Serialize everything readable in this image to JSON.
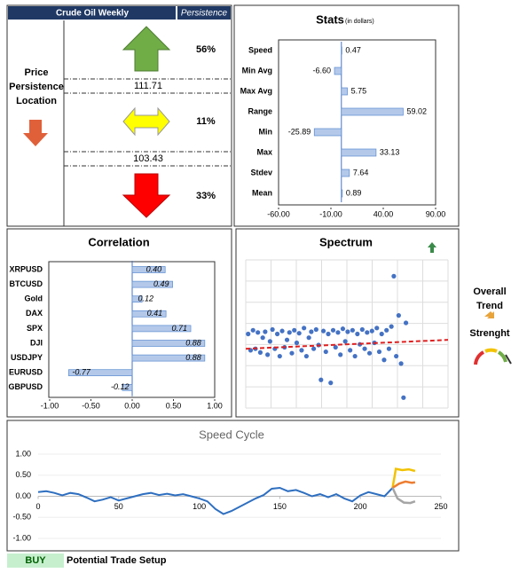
{
  "persistence": {
    "title": "Crude Oil Weekly",
    "tag": "Persistence",
    "label": "Price Persistence Location",
    "levels": [
      111.71,
      103.43
    ],
    "percents": [
      "56%",
      "11%",
      "33%"
    ]
  },
  "trend": {
    "title": "Overall Trend",
    "strength": "Strenght"
  },
  "footer": {
    "signal": "BUY",
    "label": "Potential Trade Setup"
  },
  "chart_data": [
    {
      "type": "bar",
      "orientation": "horizontal",
      "title": "Stats",
      "subtitle": "(in dollars)",
      "categories": [
        "Speed",
        "Min Avg",
        "Max Avg",
        "Range",
        "Min",
        "Max",
        "Stdev",
        "Mean"
      ],
      "values": [
        0.47,
        -6.6,
        5.75,
        59.02,
        -25.89,
        33.13,
        7.64,
        0.89
      ],
      "value_labels": [
        "0.47",
        "-6.60",
        "5.75",
        "59.02",
        "-25.89",
        "33.13",
        "7.64",
        "0.89"
      ],
      "color": "#b4c9ea",
      "xlim": [
        -60,
        90
      ],
      "xticks": [
        {
          "value": -60,
          "label": "-60.00"
        },
        {
          "value": -10,
          "label": "-10.00"
        },
        {
          "value": 40,
          "label": "40.00"
        },
        {
          "value": 90,
          "label": "90.00"
        }
      ]
    },
    {
      "type": "bar",
      "orientation": "horizontal",
      "title": "Correlation",
      "categories": [
        "XRPUSD",
        "BTCUSD",
        "Gold",
        "DAX",
        "SPX",
        "DJI",
        "USDJPY",
        "EURUSD",
        "GBPUSD"
      ],
      "values": [
        0.4,
        0.49,
        0.12,
        0.41,
        0.71,
        0.88,
        0.88,
        -0.77,
        -0.12
      ],
      "value_labels": [
        "0.40",
        "0.49",
        "0.12",
        "0.41",
        "0.71",
        "0.88",
        "0.88",
        "-0.77",
        "-0.12"
      ],
      "color": "#b4c9ea",
      "xlim": [
        -1,
        1
      ],
      "xticks": [
        {
          "value": -1,
          "label": "-1.00"
        },
        {
          "value": -0.5,
          "label": "-0.50"
        },
        {
          "value": 0,
          "label": "0.00"
        },
        {
          "value": 0.5,
          "label": "0.50"
        },
        {
          "value": 1,
          "label": "1.00"
        }
      ]
    },
    {
      "type": "scatter",
      "title": "Spectrum",
      "color": "#4472c4",
      "grid": true,
      "xlim": [
        0,
        250
      ],
      "ylim": [
        -1,
        1
      ],
      "x": [
        3,
        6,
        9,
        12,
        15,
        18,
        21,
        24,
        27,
        30,
        33,
        36,
        39,
        42,
        45,
        48,
        51,
        54,
        57,
        60,
        63,
        66,
        69,
        72,
        75,
        78,
        81,
        84,
        87,
        90,
        93,
        96,
        99,
        102,
        105,
        108,
        111,
        114,
        117,
        120,
        123,
        126,
        129,
        132,
        135,
        138,
        141,
        144,
        147,
        150,
        153,
        156,
        159,
        162,
        165,
        168,
        171,
        174,
        177,
        180,
        183,
        186,
        189,
        192,
        195,
        198
      ],
      "values": [
        0.0,
        -0.22,
        0.05,
        -0.2,
        0.02,
        -0.25,
        -0.05,
        0.03,
        -0.28,
        -0.1,
        0.06,
        -0.2,
        0.0,
        -0.3,
        0.04,
        -0.18,
        -0.08,
        0.02,
        -0.26,
        0.05,
        -0.12,
        0.01,
        -0.22,
        0.08,
        -0.3,
        -0.05,
        0.03,
        -0.2,
        0.06,
        -0.15,
        -0.62,
        0.04,
        -0.24,
        0.0,
        -0.66,
        0.05,
        -0.18,
        0.02,
        -0.28,
        0.07,
        -0.1,
        0.03,
        -0.22,
        0.05,
        -0.3,
        0.0,
        -0.14,
        0.06,
        -0.2,
        0.02,
        -0.26,
        0.04,
        -0.12,
        0.08,
        -0.24,
        0.0,
        -0.35,
        0.05,
        -0.2,
        0.1,
        0.78,
        -0.3,
        0.25,
        -0.4,
        -0.86,
        0.15
      ],
      "trend_x": [
        0,
        250
      ],
      "trend_values": [
        -0.2,
        -0.08
      ],
      "trend_color": "#e02020"
    },
    {
      "type": "line",
      "title": "Speed Cycle",
      "xlim": [
        0,
        250
      ],
      "ylim": [
        -1,
        1
      ],
      "grid": true,
      "xticks": [
        0,
        50,
        100,
        150,
        200,
        250
      ],
      "yticks": [
        {
          "value": 1,
          "label": "1.00"
        },
        {
          "value": 0.5,
          "label": "0.50"
        },
        {
          "value": 0,
          "label": "0.00"
        },
        {
          "value": -0.5,
          "label": "-0.50"
        },
        {
          "value": -1,
          "label": "-1.00"
        }
      ],
      "series": [
        {
          "color": "#2e6fc0",
          "x": [
            0,
            5,
            10,
            15,
            20,
            25,
            30,
            35,
            40,
            45,
            50,
            55,
            60,
            65,
            70,
            75,
            80,
            85,
            90,
            95,
            100,
            105,
            110,
            115,
            120,
            125,
            130,
            135,
            140,
            145,
            150,
            155,
            160,
            165,
            170,
            175,
            180,
            185,
            190,
            195,
            200,
            205,
            210,
            215,
            220
          ],
          "values": [
            0.1,
            0.12,
            0.08,
            0.02,
            0.08,
            0.05,
            -0.03,
            -0.12,
            -0.08,
            -0.02,
            -0.1,
            -0.05,
            0.0,
            0.05,
            0.08,
            0.03,
            0.06,
            0.02,
            0.05,
            0.0,
            -0.05,
            -0.12,
            -0.3,
            -0.42,
            -0.35,
            -0.25,
            -0.15,
            -0.05,
            0.03,
            0.18,
            0.2,
            0.12,
            0.15,
            0.08,
            0.0,
            0.05,
            -0.02,
            0.05,
            -0.05,
            -0.12,
            0.02,
            0.1,
            0.05,
            0.0,
            0.2
          ]
        },
        {
          "color": "#f2c200",
          "x": [
            220,
            222,
            226,
            230,
            234
          ],
          "values": [
            0.2,
            0.65,
            0.62,
            0.64,
            0.6
          ]
        },
        {
          "color": "#ed7d31",
          "x": [
            220,
            224,
            228,
            232,
            234
          ],
          "values": [
            0.2,
            0.3,
            0.35,
            0.32,
            0.33
          ]
        },
        {
          "color": "#a5a5a5",
          "x": [
            220,
            223,
            227,
            231,
            234
          ],
          "values": [
            0.2,
            -0.05,
            -0.15,
            -0.16,
            -0.12
          ]
        }
      ]
    }
  ]
}
